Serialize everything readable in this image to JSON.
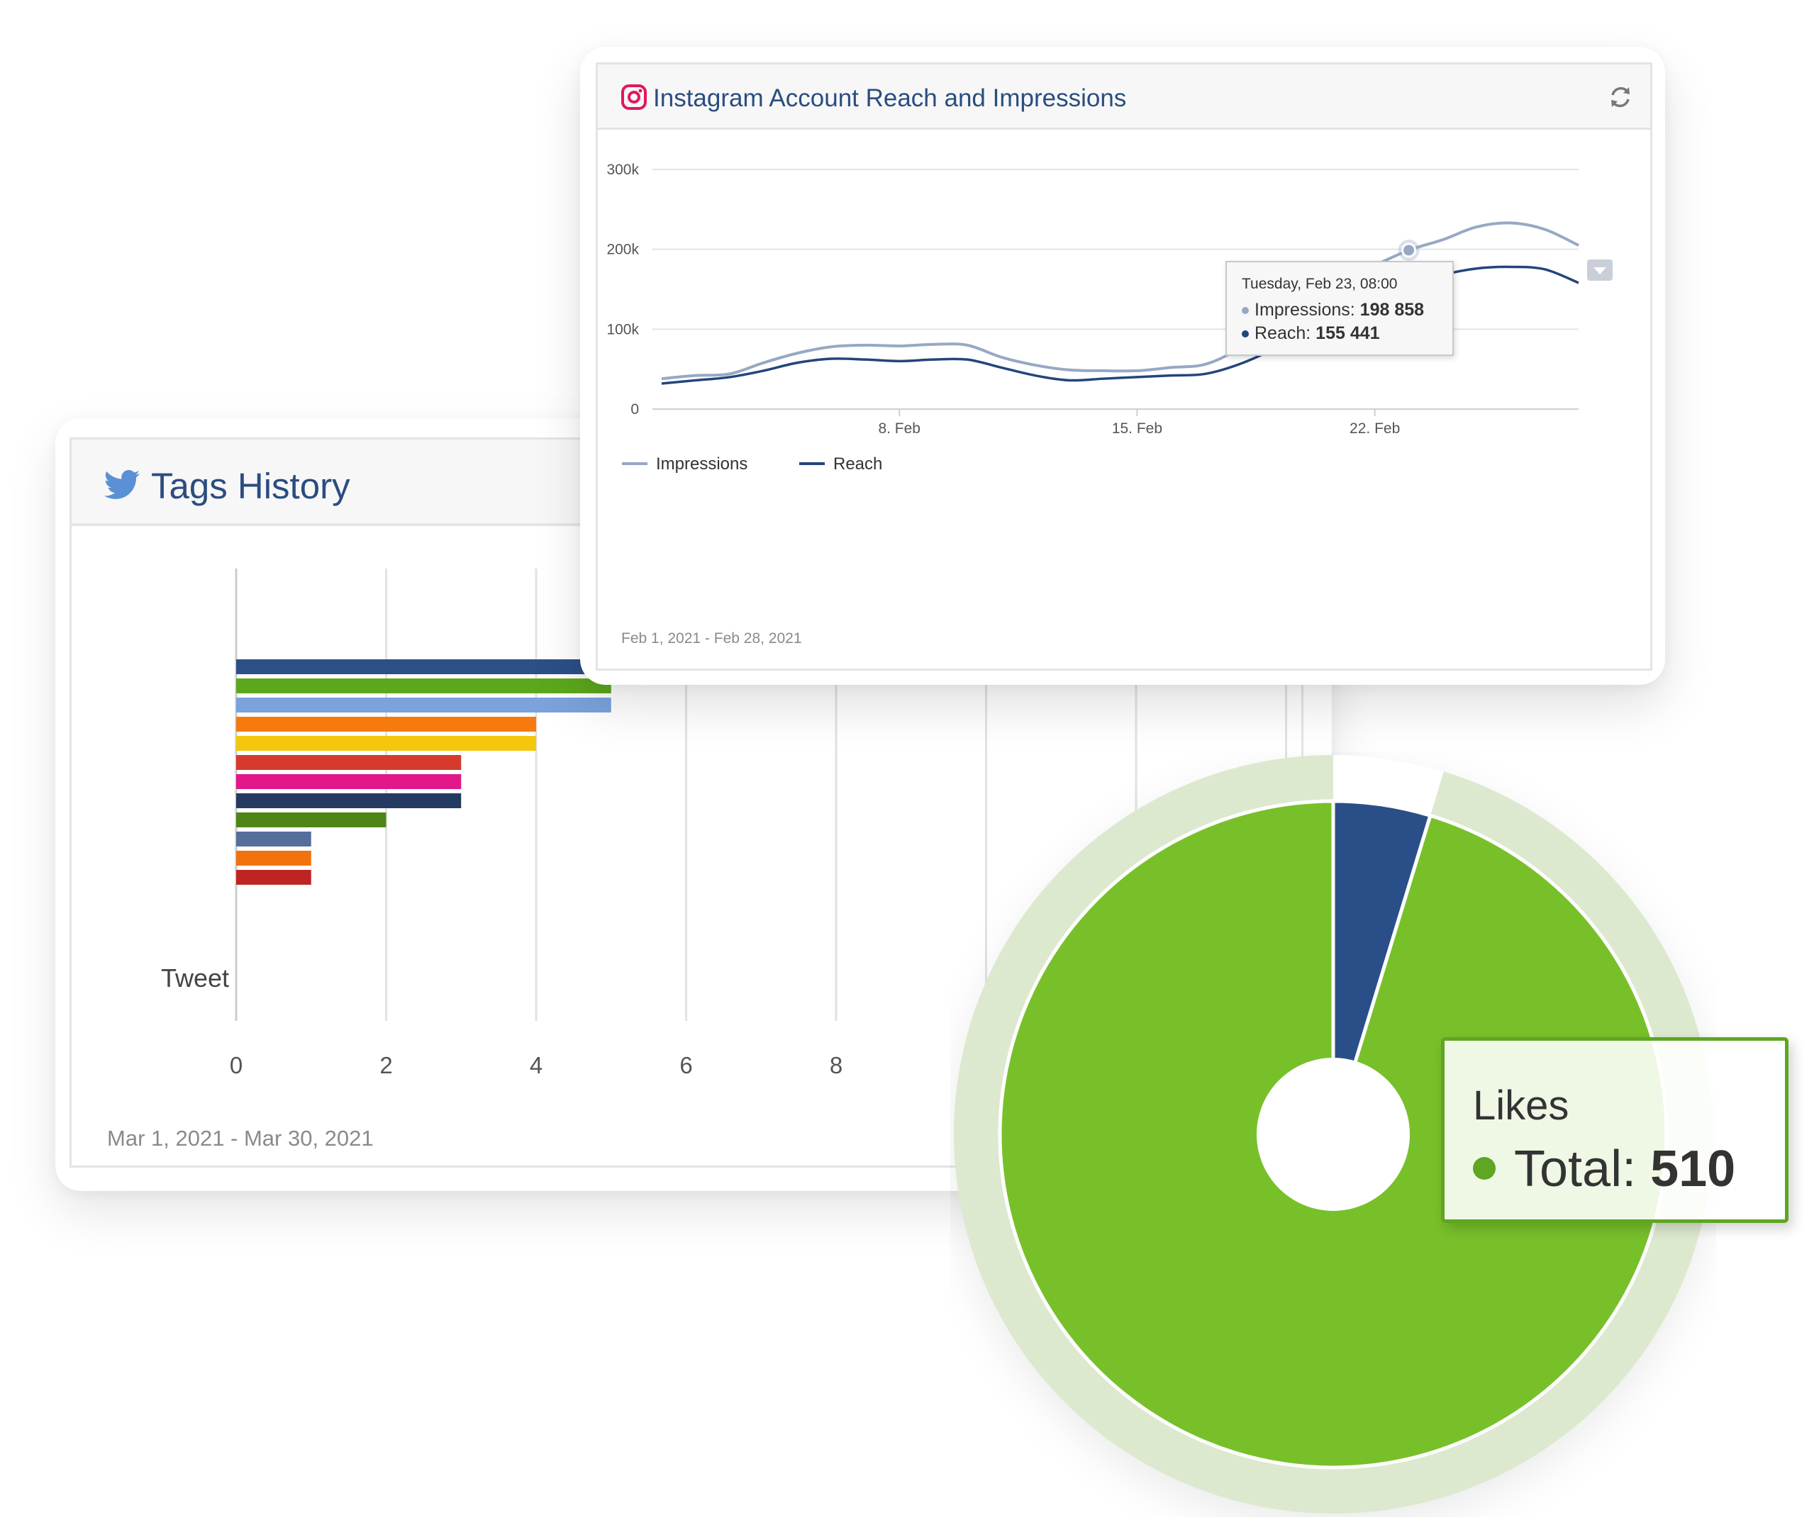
{
  "instagram_card": {
    "title": "Instagram Account Reach and Impressions",
    "date_range": "Feb 1, 2021 - Feb 28, 2021",
    "logo_icon": "instagram-icon",
    "refresh_icon": "refresh-icon",
    "tooltip": {
      "header": "Tuesday, Feb 23, 08:00",
      "impressions_label": "Impressions: ",
      "impressions_value": "198 858",
      "reach_label": "Reach: ",
      "reach_value": "155 441"
    }
  },
  "twitter_card": {
    "title": "Tags History",
    "date_range": "Mar 1, 2021 - Mar 30, 2021",
    "logo_icon": "twitter-bird-icon"
  },
  "likes_card": {
    "title": "Likes",
    "total_label": "Total: ",
    "total_value": "510",
    "dot_color": "#5fa623"
  },
  "chart_data": [
    {
      "type": "line",
      "title": "Instagram Account Reach and Impressions",
      "x_ticks": [
        "8. Feb",
        "15. Feb",
        "22. Feb"
      ],
      "y_ticks": [
        "0",
        "100k",
        "200k",
        "300k"
      ],
      "ylim": [
        0,
        300000
      ],
      "x_range_days": [
        1,
        28
      ],
      "grid": true,
      "legend_placement": "bottom-left",
      "series": [
        {
          "name": "Impressions",
          "color": "#96a8c4",
          "x": [
            1,
            2,
            3,
            4,
            5,
            6,
            7,
            8,
            9,
            10,
            11,
            12,
            13,
            14,
            15,
            16,
            17,
            18,
            19,
            20,
            21,
            22,
            23,
            24,
            25,
            26,
            27,
            28
          ],
          "values": [
            38000,
            42000,
            44000,
            58000,
            70000,
            78000,
            80000,
            79000,
            81000,
            80000,
            65000,
            55000,
            49000,
            48000,
            48000,
            52000,
            56000,
            75000,
            100000,
            130000,
            160000,
            180000,
            198858,
            212000,
            228000,
            233000,
            225000,
            205000
          ]
        },
        {
          "name": "Reach",
          "color": "#23457c",
          "x": [
            1,
            2,
            3,
            4,
            5,
            6,
            7,
            8,
            9,
            10,
            11,
            12,
            13,
            14,
            15,
            16,
            17,
            18,
            19,
            20,
            21,
            22,
            23,
            24,
            25,
            26,
            27,
            28
          ],
          "values": [
            32000,
            36000,
            40000,
            48000,
            58000,
            63000,
            62000,
            60000,
            62000,
            62000,
            52000,
            42000,
            36000,
            38000,
            40000,
            42000,
            44000,
            56000,
            75000,
            100000,
            125000,
            145000,
            155441,
            168000,
            176000,
            178000,
            175000,
            158000
          ]
        }
      ]
    },
    {
      "type": "bar",
      "orientation": "horizontal",
      "title": "Tags History",
      "categories": [
        "Tweet"
      ],
      "x_ticks": [
        "0",
        "2",
        "4",
        "6",
        "8"
      ],
      "xlim": [
        0,
        12
      ],
      "grid": true,
      "series": [
        {
          "values": [
            12
          ],
          "color": "#2c4f86"
        },
        {
          "values": [
            5
          ],
          "color": "#5ca81c"
        },
        {
          "values": [
            5
          ],
          "color": "#7aa2dc"
        },
        {
          "values": [
            4
          ],
          "color": "#f57a10"
        },
        {
          "values": [
            4
          ],
          "color": "#f5c70c"
        },
        {
          "values": [
            3
          ],
          "color": "#d63a2c"
        },
        {
          "values": [
            3
          ],
          "color": "#e2178a"
        },
        {
          "values": [
            3
          ],
          "color": "#253a60"
        },
        {
          "values": [
            2
          ],
          "color": "#4f8516"
        },
        {
          "values": [
            1
          ],
          "color": "#566e9c"
        },
        {
          "values": [
            1
          ],
          "color": "#f2720e"
        },
        {
          "values": [
            1
          ],
          "color": "#be2424"
        }
      ]
    },
    {
      "type": "pie",
      "title": "Likes",
      "total": 510,
      "slices": [
        {
          "value": 24,
          "color": "#2a4f88"
        },
        {
          "value": 486,
          "color": "#78c02a"
        }
      ]
    }
  ]
}
